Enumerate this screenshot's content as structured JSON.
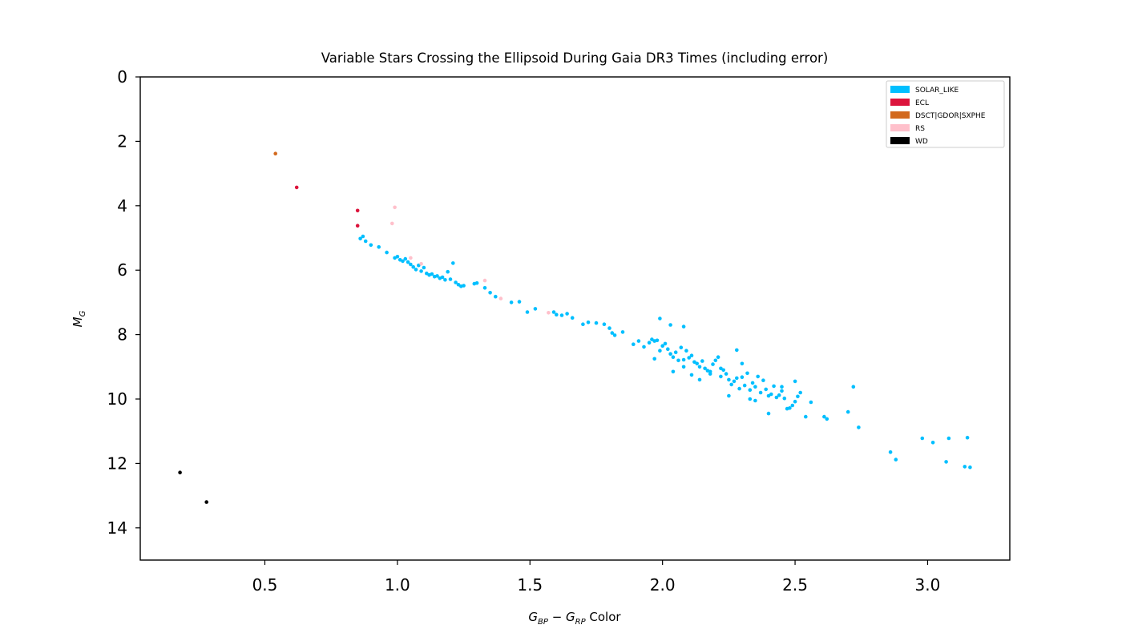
{
  "chart_data": {
    "type": "scatter",
    "title": "Variable Stars Crossing the Ellipsoid During Gaia DR3 Times (including error)",
    "xlabel_main": "G",
    "xlabel_sub1": "BP",
    "xlabel_minus": " − ",
    "xlabel_main2": "G",
    "xlabel_sub2": "RP",
    "xlabel_tail": " Color",
    "ylabel_main": "M",
    "ylabel_sub": "G",
    "xlim": [
      0.03,
      3.31
    ],
    "ylim": [
      15.0,
      0.0
    ],
    "y_inverted": true,
    "xticks": [
      0.5,
      1.0,
      1.5,
      2.0,
      2.5,
      3.0
    ],
    "xtick_labels": [
      "0.5",
      "1.0",
      "1.5",
      "2.0",
      "2.5",
      "3.0"
    ],
    "yticks": [
      0,
      2,
      4,
      6,
      8,
      10,
      12,
      14
    ],
    "ytick_labels": [
      "0",
      "2",
      "4",
      "6",
      "8",
      "10",
      "12",
      "14"
    ],
    "grid": false,
    "legend_position": "top-right",
    "series": [
      {
        "name": "SOLAR_LIKE",
        "color": "#00bfff",
        "points": [
          [
            0.86,
            5.02
          ],
          [
            0.87,
            4.95
          ],
          [
            0.88,
            5.1
          ],
          [
            0.9,
            5.22
          ],
          [
            0.93,
            5.28
          ],
          [
            0.96,
            5.45
          ],
          [
            0.99,
            5.62
          ],
          [
            1.0,
            5.58
          ],
          [
            1.01,
            5.68
          ],
          [
            1.02,
            5.72
          ],
          [
            1.03,
            5.65
          ],
          [
            1.04,
            5.75
          ],
          [
            1.05,
            5.82
          ],
          [
            1.06,
            5.9
          ],
          [
            1.07,
            5.98
          ],
          [
            1.08,
            5.85
          ],
          [
            1.09,
            6.03
          ],
          [
            1.1,
            5.92
          ],
          [
            1.11,
            6.1
          ],
          [
            1.12,
            6.15
          ],
          [
            1.13,
            6.12
          ],
          [
            1.14,
            6.2
          ],
          [
            1.15,
            6.18
          ],
          [
            1.16,
            6.25
          ],
          [
            1.17,
            6.22
          ],
          [
            1.18,
            6.3
          ],
          [
            1.19,
            6.05
          ],
          [
            1.2,
            6.28
          ],
          [
            1.21,
            5.78
          ],
          [
            1.22,
            6.38
          ],
          [
            1.23,
            6.45
          ],
          [
            1.24,
            6.5
          ],
          [
            1.25,
            6.48
          ],
          [
            1.29,
            6.42
          ],
          [
            1.3,
            6.4
          ],
          [
            1.33,
            6.55
          ],
          [
            1.35,
            6.7
          ],
          [
            1.37,
            6.82
          ],
          [
            1.43,
            7.0
          ],
          [
            1.46,
            6.98
          ],
          [
            1.49,
            7.3
          ],
          [
            1.52,
            7.2
          ],
          [
            1.59,
            7.3
          ],
          [
            1.6,
            7.38
          ],
          [
            1.62,
            7.4
          ],
          [
            1.64,
            7.35
          ],
          [
            1.66,
            7.48
          ],
          [
            1.7,
            7.68
          ],
          [
            1.72,
            7.62
          ],
          [
            1.75,
            7.64
          ],
          [
            1.78,
            7.68
          ],
          [
            1.8,
            7.8
          ],
          [
            1.81,
            7.95
          ],
          [
            1.82,
            8.02
          ],
          [
            1.85,
            7.92
          ],
          [
            1.89,
            8.3
          ],
          [
            1.91,
            8.2
          ],
          [
            1.93,
            8.38
          ],
          [
            1.95,
            8.25
          ],
          [
            1.96,
            8.15
          ],
          [
            1.97,
            8.2
          ],
          [
            1.98,
            8.18
          ],
          [
            1.99,
            7.5
          ],
          [
            2.0,
            8.35
          ],
          [
            2.01,
            8.28
          ],
          [
            2.02,
            8.45
          ],
          [
            2.03,
            8.6
          ],
          [
            2.04,
            8.7
          ],
          [
            2.05,
            8.55
          ],
          [
            2.06,
            8.8
          ],
          [
            2.07,
            8.4
          ],
          [
            2.08,
            8.78
          ],
          [
            2.09,
            8.5
          ],
          [
            2.1,
            8.72
          ],
          [
            2.11,
            8.65
          ],
          [
            2.12,
            8.85
          ],
          [
            2.13,
            8.9
          ],
          [
            2.14,
            9.0
          ],
          [
            2.15,
            8.82
          ],
          [
            2.16,
            9.05
          ],
          [
            2.17,
            9.12
          ],
          [
            2.18,
            9.22
          ],
          [
            2.19,
            8.92
          ],
          [
            2.2,
            8.8
          ],
          [
            2.21,
            8.7
          ],
          [
            2.22,
            9.3
          ],
          [
            2.23,
            9.1
          ],
          [
            2.24,
            9.22
          ],
          [
            2.25,
            9.4
          ],
          [
            2.26,
            9.55
          ],
          [
            2.27,
            9.45
          ],
          [
            2.28,
            8.48
          ],
          [
            2.29,
            9.68
          ],
          [
            2.3,
            9.32
          ],
          [
            2.31,
            9.58
          ],
          [
            2.32,
            9.2
          ],
          [
            2.33,
            9.72
          ],
          [
            2.34,
            9.5
          ],
          [
            2.35,
            9.62
          ],
          [
            2.36,
            9.3
          ],
          [
            2.37,
            9.8
          ],
          [
            2.38,
            9.42
          ],
          [
            2.39,
            9.7
          ],
          [
            2.4,
            9.9
          ],
          [
            2.41,
            9.85
          ],
          [
            2.42,
            9.6
          ],
          [
            2.43,
            9.95
          ],
          [
            2.44,
            9.88
          ],
          [
            2.45,
            9.75
          ],
          [
            2.46,
            9.98
          ],
          [
            2.47,
            10.3
          ],
          [
            2.48,
            10.28
          ],
          [
            2.49,
            10.2
          ],
          [
            2.5,
            10.08
          ],
          [
            2.51,
            9.92
          ],
          [
            2.52,
            9.8
          ],
          [
            2.54,
            10.55
          ],
          [
            2.56,
            10.1
          ],
          [
            2.62,
            10.62
          ],
          [
            2.7,
            10.4
          ],
          [
            2.74,
            10.88
          ],
          [
            2.72,
            9.62
          ],
          [
            2.86,
            11.65
          ],
          [
            2.88,
            11.88
          ],
          [
            2.98,
            11.22
          ],
          [
            3.02,
            11.35
          ],
          [
            3.07,
            11.95
          ],
          [
            3.08,
            11.22
          ],
          [
            3.14,
            12.1
          ],
          [
            3.15,
            11.2
          ],
          [
            3.16,
            12.12
          ],
          [
            2.03,
            7.7
          ],
          [
            2.08,
            7.75
          ],
          [
            2.33,
            10.0
          ],
          [
            2.35,
            10.05
          ],
          [
            2.4,
            10.45
          ],
          [
            2.45,
            9.62
          ],
          [
            2.5,
            9.45
          ],
          [
            2.61,
            10.55
          ],
          [
            2.25,
            9.9
          ],
          [
            2.3,
            8.9
          ],
          [
            2.28,
            9.35
          ],
          [
            2.22,
            9.05
          ],
          [
            2.18,
            9.15
          ],
          [
            2.14,
            9.4
          ],
          [
            2.11,
            9.25
          ],
          [
            2.08,
            9.0
          ],
          [
            2.04,
            9.15
          ],
          [
            1.99,
            8.5
          ],
          [
            1.97,
            8.75
          ]
        ]
      },
      {
        "name": "ECL",
        "color": "#dc143c",
        "points": [
          [
            0.62,
            3.43
          ],
          [
            0.85,
            4.15
          ],
          [
            0.85,
            4.62
          ]
        ]
      },
      {
        "name": "DSCT|GDOR|SXPHE",
        "color": "#d2691e",
        "points": [
          [
            0.54,
            2.38
          ]
        ]
      },
      {
        "name": "RS",
        "color": "#ffc0cb",
        "points": [
          [
            0.99,
            4.05
          ],
          [
            0.98,
            4.55
          ],
          [
            1.05,
            5.62
          ],
          [
            1.09,
            5.8
          ],
          [
            1.33,
            6.32
          ],
          [
            1.39,
            6.88
          ],
          [
            1.57,
            7.32
          ]
        ]
      },
      {
        "name": "WD",
        "color": "#000000",
        "points": [
          [
            0.18,
            12.28
          ],
          [
            0.28,
            13.2
          ]
        ]
      }
    ]
  }
}
